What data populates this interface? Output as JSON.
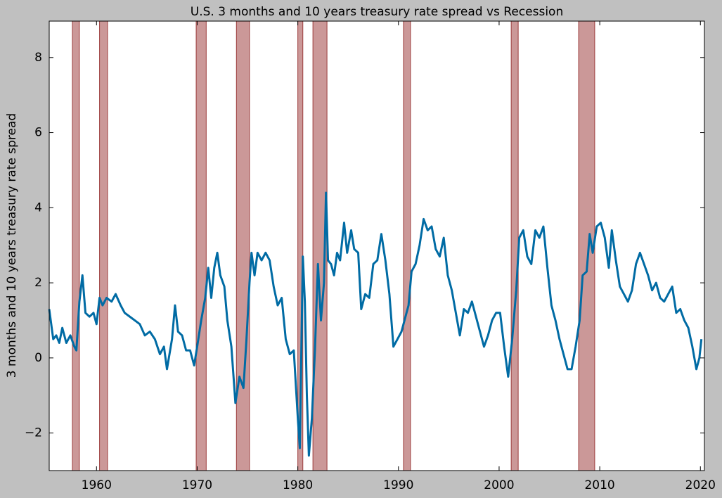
{
  "chart_data": {
    "type": "line",
    "title": "U.S. 3 months and 10 years treasury rate spread vs Recession",
    "y_label": "3 months and 10 years treasury rate spread",
    "color": "#006ba4",
    "recession_color": "#8b1a1a",
    "recessions": [
      [
        1957.6,
        1958.3
      ],
      [
        1960.3,
        1961.1
      ],
      [
        1969.9,
        1970.9
      ],
      [
        1973.9,
        1975.2
      ],
      [
        1980.0,
        1980.5
      ],
      [
        1981.5,
        1982.9
      ],
      [
        1990.5,
        1991.2
      ],
      [
        2001.2,
        2001.9
      ],
      [
        2007.9,
        2009.5
      ]
    ],
    "x": [
      1955.3,
      1955.7,
      1956.0,
      1956.3,
      1956.6,
      1957.0,
      1957.4,
      1957.8,
      1958.0,
      1958.3,
      1958.6,
      1958.9,
      1959.3,
      1959.7,
      1960.0,
      1960.3,
      1960.6,
      1961.0,
      1961.5,
      1961.9,
      1962.4,
      1962.8,
      1963.3,
      1963.8,
      1964.3,
      1964.8,
      1965.3,
      1965.8,
      1966.3,
      1966.7,
      1967.0,
      1967.5,
      1967.8,
      1968.1,
      1968.5,
      1968.9,
      1969.3,
      1969.7,
      1970.0,
      1970.4,
      1970.8,
      1971.1,
      1971.4,
      1971.7,
      1972.0,
      1972.3,
      1972.7,
      1973.0,
      1973.4,
      1973.8,
      1974.2,
      1974.6,
      1974.9,
      1975.2,
      1975.4,
      1975.7,
      1976.0,
      1976.4,
      1976.8,
      1977.2,
      1977.6,
      1978.0,
      1978.4,
      1978.8,
      1979.2,
      1979.6,
      1980.0,
      1980.2,
      1980.5,
      1980.7,
      1980.9,
      1981.1,
      1981.4,
      1981.7,
      1982.0,
      1982.3,
      1982.6,
      1982.8,
      1983.0,
      1983.3,
      1983.6,
      1983.9,
      1984.2,
      1984.6,
      1984.9,
      1985.3,
      1985.6,
      1986.0,
      1986.3,
      1986.7,
      1987.1,
      1987.5,
      1987.9,
      1988.3,
      1988.7,
      1989.1,
      1989.5,
      1989.9,
      1990.3,
      1990.7,
      1991.0,
      1991.3,
      1991.7,
      1992.1,
      1992.5,
      1992.9,
      1993.3,
      1993.7,
      1994.1,
      1994.5,
      1994.9,
      1995.3,
      1995.7,
      1996.1,
      1996.5,
      1996.9,
      1997.3,
      1997.7,
      1998.1,
      1998.5,
      1998.9,
      1999.3,
      1999.7,
      2000.1,
      2000.5,
      2000.9,
      2001.3,
      2001.7,
      2002.0,
      2002.4,
      2002.8,
      2003.2,
      2003.6,
      2004.0,
      2004.4,
      2004.8,
      2005.2,
      2005.6,
      2006.0,
      2006.4,
      2006.8,
      2007.2,
      2007.6,
      2008.0,
      2008.3,
      2008.7,
      2009.0,
      2009.3,
      2009.7,
      2010.1,
      2010.5,
      2010.9,
      2011.2,
      2011.6,
      2012.0,
      2012.4,
      2012.8,
      2013.2,
      2013.6,
      2014.0,
      2014.4,
      2014.8,
      2015.2,
      2015.6,
      2016.0,
      2016.4,
      2016.8,
      2017.2,
      2017.6,
      2018.0,
      2018.4,
      2018.8,
      2019.2,
      2019.6,
      2019.9,
      2020.1
    ],
    "values": [
      1.3,
      0.5,
      0.6,
      0.4,
      0.8,
      0.4,
      0.6,
      0.3,
      0.2,
      1.5,
      2.2,
      1.2,
      1.1,
      1.2,
      0.9,
      1.6,
      1.4,
      1.6,
      1.5,
      1.7,
      1.4,
      1.2,
      1.1,
      1.0,
      0.9,
      0.6,
      0.7,
      0.5,
      0.1,
      0.3,
      -0.3,
      0.5,
      1.4,
      0.7,
      0.6,
      0.2,
      0.2,
      -0.2,
      0.3,
      1.0,
      1.6,
      2.4,
      1.6,
      2.4,
      2.8,
      2.2,
      1.9,
      1.0,
      0.3,
      -1.2,
      -0.5,
      -0.8,
      0.5,
      2.0,
      2.8,
      2.2,
      2.8,
      2.6,
      2.8,
      2.6,
      1.9,
      1.4,
      1.6,
      0.5,
      0.1,
      0.2,
      -1.6,
      -2.4,
      2.7,
      1.5,
      -1.0,
      -2.6,
      -1.6,
      0.2,
      2.5,
      1.0,
      2.0,
      4.4,
      2.6,
      2.5,
      2.2,
      2.8,
      2.6,
      3.6,
      2.8,
      3.4,
      2.9,
      2.8,
      1.3,
      1.7,
      1.6,
      2.5,
      2.6,
      3.3,
      2.6,
      1.7,
      0.3,
      0.5,
      0.7,
      1.1,
      1.4,
      2.3,
      2.5,
      3.0,
      3.7,
      3.4,
      3.5,
      2.9,
      2.7,
      3.2,
      2.2,
      1.8,
      1.2,
      0.6,
      1.3,
      1.2,
      1.5,
      1.1,
      0.7,
      0.3,
      0.6,
      1.0,
      1.2,
      1.2,
      0.3,
      -0.5,
      0.5,
      1.8,
      3.2,
      3.4,
      2.7,
      2.5,
      3.4,
      3.2,
      3.5,
      2.4,
      1.4,
      1.0,
      0.5,
      0.1,
      -0.3,
      -0.3,
      0.3,
      1.0,
      2.2,
      2.3,
      3.3,
      2.8,
      3.5,
      3.6,
      3.2,
      2.4,
      3.4,
      2.6,
      1.9,
      1.7,
      1.5,
      1.8,
      2.5,
      2.8,
      2.5,
      2.2,
      1.8,
      2.0,
      1.6,
      1.5,
      1.7,
      1.9,
      1.2,
      1.3,
      1.0,
      0.8,
      0.3,
      -0.3,
      0.0,
      0.5
    ],
    "xlim": [
      1955.3,
      2020.4
    ],
    "ylim": [
      -3.0,
      8.97
    ],
    "xticks": [
      1960,
      1970,
      1980,
      1990,
      2000,
      2010,
      2020
    ],
    "yticks": [
      {
        "value": -2,
        "label": "−2"
      },
      0,
      2,
      4,
      6,
      8
    ]
  }
}
